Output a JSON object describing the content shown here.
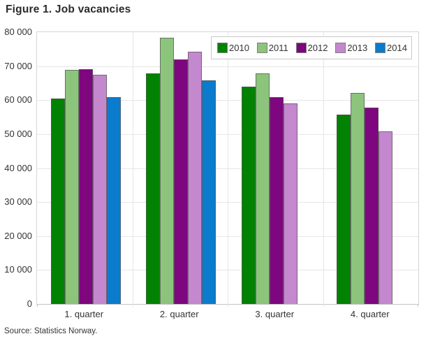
{
  "title": "Figure 1. Job vacancies",
  "source": "Source: Statistics Norway.",
  "chart_data": {
    "type": "bar",
    "title": "Figure 1. Job vacancies",
    "xlabel": "",
    "ylabel": "",
    "categories": [
      "1. quarter",
      "2. quarter",
      "3. quarter",
      "4. quarter"
    ],
    "series": [
      {
        "name": "2010",
        "color": "#028202",
        "values": [
          60400,
          67800,
          63900,
          55800
        ]
      },
      {
        "name": "2011",
        "color": "#8cc47c",
        "values": [
          68800,
          78300,
          67900,
          62100
        ]
      },
      {
        "name": "2012",
        "color": "#7e067e",
        "values": [
          69100,
          71900,
          60800,
          57800
        ]
      },
      {
        "name": "2013",
        "color": "#c488ce",
        "values": [
          67500,
          74300,
          59100,
          50800
        ]
      },
      {
        "name": "2014",
        "color": "#0b7bce",
        "values": [
          60900,
          65900,
          null,
          null
        ]
      }
    ],
    "ylim": [
      0,
      80000
    ],
    "ytick_step": 10000,
    "yticks": [
      "80 000",
      "70 000",
      "60 000",
      "50 000",
      "40 000",
      "30 000",
      "20 000",
      "10 000",
      "0"
    ],
    "grid": true,
    "legend_position": "top-right"
  },
  "colors": {
    "gridline": "#e6e6e6",
    "plot_border": "#d6d6d6",
    "axis_line": "#c3c3c3",
    "bar_border": "rgba(90,90,90,0.75)",
    "text": "#333333"
  }
}
